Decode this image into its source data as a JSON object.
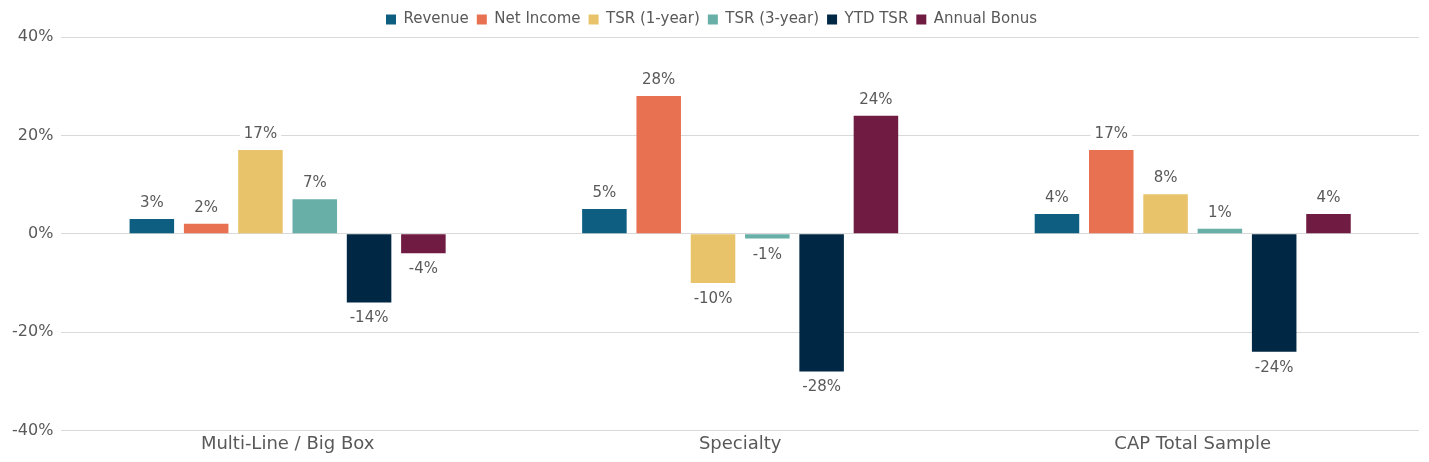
{
  "chart_data": {
    "type": "bar",
    "categories": [
      "Multi-Line / Big Box",
      "Specialty",
      "CAP Total Sample"
    ],
    "series": [
      {
        "name": "Revenue",
        "color": "#0e5e82",
        "values": [
          3,
          5,
          4
        ],
        "value_labels": [
          "3%",
          "5%",
          "4%"
        ]
      },
      {
        "name": "Net Income",
        "color": "#e87151",
        "values": [
          2,
          28,
          17
        ],
        "value_labels": [
          "2%",
          "28%",
          "17%"
        ]
      },
      {
        "name": "TSR (1-year)",
        "color": "#e8c36a",
        "values": [
          17,
          -10,
          8
        ],
        "value_labels": [
          "17%",
          "-10%",
          "8%"
        ]
      },
      {
        "name": "TSR (3-year)",
        "color": "#67afa7",
        "values": [
          7,
          -1,
          1
        ],
        "value_labels": [
          "7%",
          "-1%",
          "1%"
        ]
      },
      {
        "name": "YTD TSR",
        "color": "#002743",
        "values": [
          -14,
          -28,
          -24
        ],
        "value_labels": [
          "-14%",
          "-28%",
          "-24%"
        ]
      },
      {
        "name": "Annual Bonus",
        "color": "#701b42",
        "values": [
          -4,
          24,
          4
        ],
        "value_labels": [
          "-4%",
          "24%",
          "4%"
        ]
      }
    ],
    "ylim": [
      -40,
      40
    ],
    "yticks": [
      {
        "value": -40,
        "label": "-40%"
      },
      {
        "value": -20,
        "label": "-20%"
      },
      {
        "value": 0,
        "label": "0%"
      },
      {
        "value": 20,
        "label": "20%"
      },
      {
        "value": 40,
        "label": "40%"
      }
    ],
    "grid": "y",
    "legend": "top"
  }
}
